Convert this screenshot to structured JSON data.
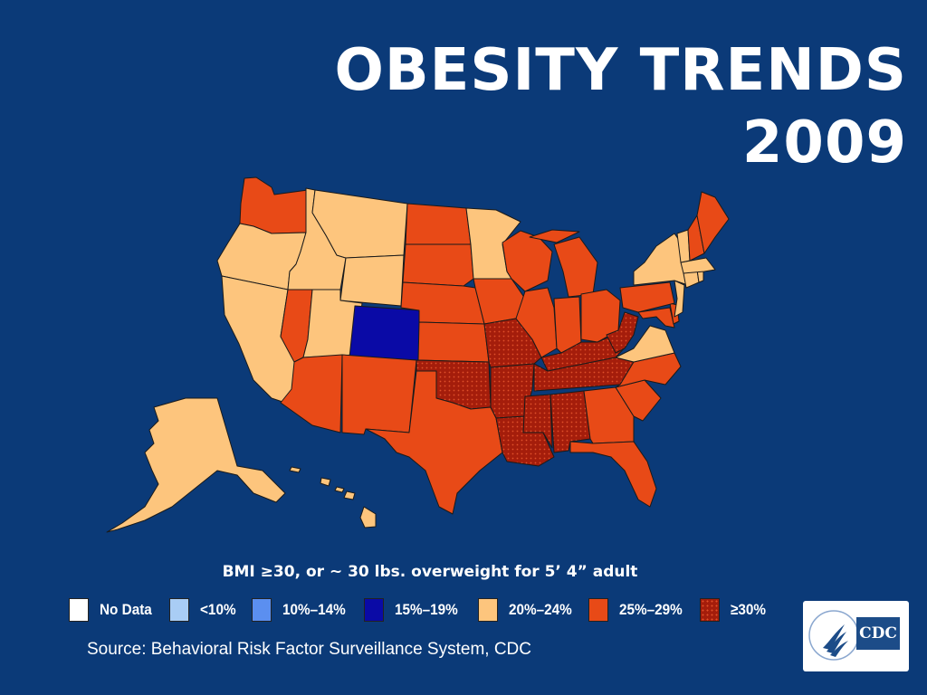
{
  "title": {
    "line1": "OBESITY TRENDS",
    "line2": "2009"
  },
  "caption": "BMI ≥30, or ~ 30 lbs. overweight for 5’ 4” adult",
  "colors": {
    "background": "#0b3a78",
    "no_data": "#ffffff",
    "lt10": "#a9cdf5",
    "p10_14": "#5b8ff0",
    "p15_19": "#0a0aa6",
    "p20_24": "#fdc57d",
    "p25_29": "#e84a17",
    "ge30": "#a41d0b",
    "border": "#1a1a1a"
  },
  "legend": [
    {
      "key": "no_data",
      "label": "No Data"
    },
    {
      "key": "lt10",
      "label": "<10%"
    },
    {
      "key": "p10_14",
      "label": "10%–14%"
    },
    {
      "key": "p15_19",
      "label": "15%–19%"
    },
    {
      "key": "p20_24",
      "label": "20%–24%"
    },
    {
      "key": "p25_29",
      "label": "25%–29%"
    },
    {
      "key": "ge30",
      "label": "≥30%",
      "pattern": "dotted"
    }
  ],
  "states": [
    {
      "name": "Washington",
      "cat": "p25_29"
    },
    {
      "name": "Oregon",
      "cat": "p20_24"
    },
    {
      "name": "California",
      "cat": "p20_24"
    },
    {
      "name": "Idaho",
      "cat": "p20_24"
    },
    {
      "name": "Nevada",
      "cat": "p25_29"
    },
    {
      "name": "Montana",
      "cat": "p20_24"
    },
    {
      "name": "Wyoming",
      "cat": "p20_24"
    },
    {
      "name": "Utah",
      "cat": "p20_24"
    },
    {
      "name": "Arizona",
      "cat": "p25_29"
    },
    {
      "name": "Colorado",
      "cat": "p15_19"
    },
    {
      "name": "New Mexico",
      "cat": "p25_29"
    },
    {
      "name": "North Dakota",
      "cat": "p25_29"
    },
    {
      "name": "South Dakota",
      "cat": "p25_29"
    },
    {
      "name": "Nebraska",
      "cat": "p25_29"
    },
    {
      "name": "Kansas",
      "cat": "p25_29"
    },
    {
      "name": "Oklahoma",
      "cat": "ge30"
    },
    {
      "name": "Texas",
      "cat": "p25_29"
    },
    {
      "name": "Minnesota",
      "cat": "p20_24"
    },
    {
      "name": "Iowa",
      "cat": "p25_29"
    },
    {
      "name": "Missouri",
      "cat": "ge30"
    },
    {
      "name": "Arkansas",
      "cat": "ge30"
    },
    {
      "name": "Louisiana",
      "cat": "ge30"
    },
    {
      "name": "Wisconsin",
      "cat": "p25_29"
    },
    {
      "name": "Illinois",
      "cat": "p25_29"
    },
    {
      "name": "Michigan",
      "cat": "p25_29"
    },
    {
      "name": "Indiana",
      "cat": "p25_29"
    },
    {
      "name": "Ohio",
      "cat": "p25_29"
    },
    {
      "name": "Kentucky",
      "cat": "ge30"
    },
    {
      "name": "Tennessee",
      "cat": "ge30"
    },
    {
      "name": "Mississippi",
      "cat": "ge30"
    },
    {
      "name": "Alabama",
      "cat": "ge30"
    },
    {
      "name": "Georgia",
      "cat": "p25_29"
    },
    {
      "name": "Florida",
      "cat": "p25_29"
    },
    {
      "name": "South Carolina",
      "cat": "p25_29"
    },
    {
      "name": "North Carolina",
      "cat": "p25_29"
    },
    {
      "name": "Virginia",
      "cat": "p20_24"
    },
    {
      "name": "West Virginia",
      "cat": "ge30"
    },
    {
      "name": "Maryland",
      "cat": "p25_29"
    },
    {
      "name": "Delaware",
      "cat": "p25_29"
    },
    {
      "name": "Pennsylvania",
      "cat": "p25_29"
    },
    {
      "name": "New Jersey",
      "cat": "p20_24"
    },
    {
      "name": "New York",
      "cat": "p20_24"
    },
    {
      "name": "Connecticut",
      "cat": "p20_24"
    },
    {
      "name": "Rhode Island",
      "cat": "p20_24"
    },
    {
      "name": "Massachusetts",
      "cat": "p20_24"
    },
    {
      "name": "Vermont",
      "cat": "p20_24"
    },
    {
      "name": "New Hampshire",
      "cat": "p25_29"
    },
    {
      "name": "Maine",
      "cat": "p25_29"
    },
    {
      "name": "Alaska",
      "cat": "p20_24"
    },
    {
      "name": "Hawaii",
      "cat": "p20_24"
    }
  ],
  "source": "Source: Behavioral Risk Factor Surveillance System, CDC",
  "logo": {
    "text": "CDC"
  }
}
